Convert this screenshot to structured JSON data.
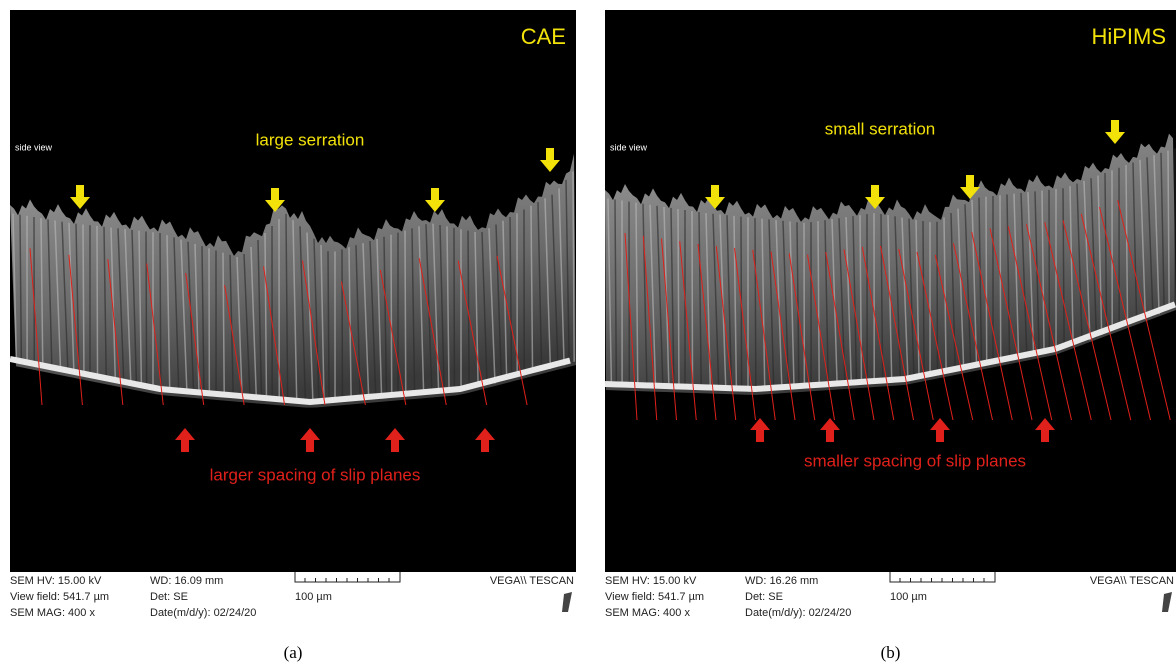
{
  "panels": [
    {
      "label": "CAE",
      "side_view": "side view",
      "annotation_top": "large serration",
      "annotation_bottom": "larger spacing of slip planes",
      "info": {
        "hv": "SEM HV: 15.00 kV",
        "view_field": "View field: 541.7 µm",
        "mag": "SEM MAG: 400 x",
        "wd": "WD: 16.09 mm",
        "det": "Det: SE",
        "date": "Date(m/d/y): 02/24/20",
        "scale": "100 µm",
        "brand": "VEGA\\\\ TESCAN"
      },
      "caption": "(a)"
    },
    {
      "label": "HiPIMS",
      "side_view": "side view",
      "annotation_top": "small serration",
      "annotation_bottom": "smaller spacing of slip planes",
      "info": {
        "hv": "SEM HV: 15.00 kV",
        "view_field": "View field: 541.7 µm",
        "mag": "SEM MAG: 400 x",
        "wd": "WD: 16.26 mm",
        "det": "Det: SE",
        "date": "Date(m/d/y): 02/24/20",
        "scale": "100 µm",
        "brand": "VEGA\\\\ TESCAN"
      },
      "caption": "(b)"
    }
  ]
}
